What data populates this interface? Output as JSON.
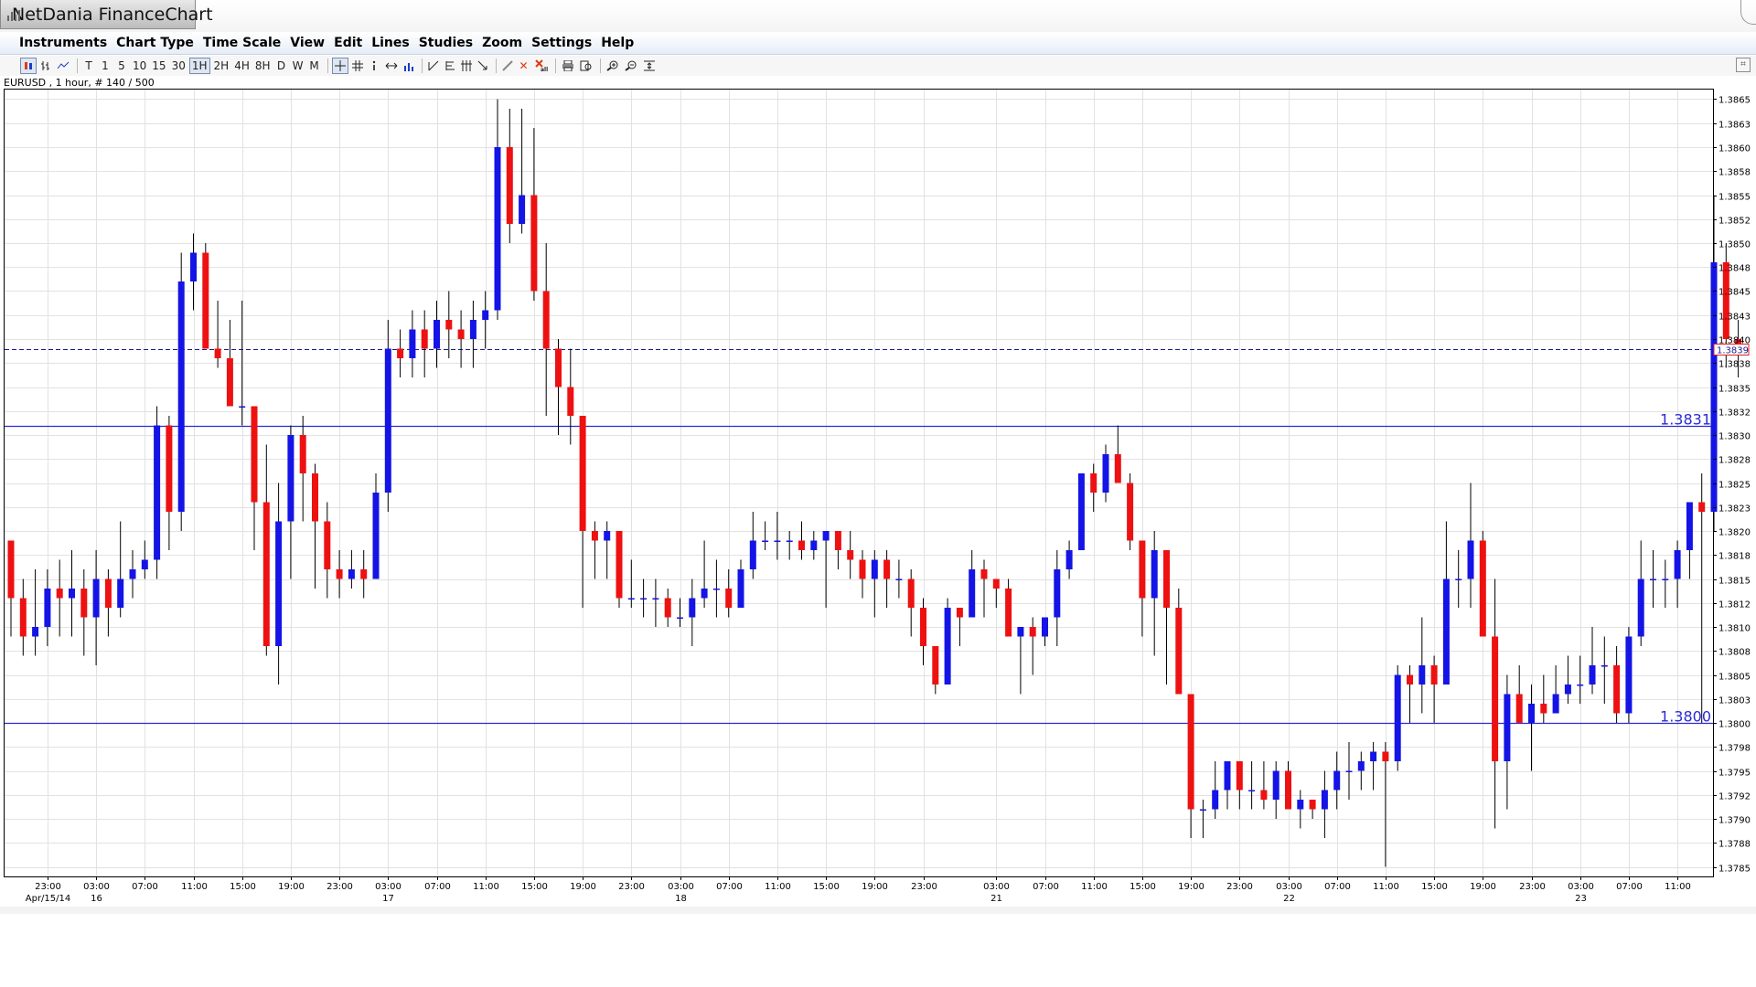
{
  "app": {
    "title": "NetDania FinanceChart",
    "menu": [
      "Instruments",
      "Chart Type",
      "Time Scale",
      "View",
      "Edit",
      "Lines",
      "Studies",
      "Zoom",
      "Settings",
      "Help"
    ],
    "toolbar": {
      "chart_type_icons": [
        "candle-chart-icon",
        "bar-chart-icon",
        "line-chart-icon"
      ],
      "timescales": [
        "T",
        "1",
        "5",
        "10",
        "15",
        "30",
        "1H",
        "2H",
        "4H",
        "8H",
        "D",
        "W",
        "M"
      ],
      "active_timescale": "1H",
      "tool_icons": [
        "crosshair-icon",
        "grid-icon",
        "info-icon",
        "pan-arrows-icon",
        "volume-icon"
      ],
      "line_tool_icons": [
        "trendline-icon",
        "fibonacci-icon",
        "pitchfork-icon",
        "arrow-line-icon"
      ],
      "edit_icons": [
        "pencil-icon",
        "delete-icon",
        "delete-all-icon"
      ],
      "view_icons": [
        "print-icon",
        "print-preview-icon",
        "zoom-in-icon",
        "zoom-out-icon",
        "zoom-fit-icon"
      ]
    },
    "instrument_label": "EURUSD , 1 hour, # 140 / 500"
  },
  "colors": {
    "up_candle": "#1414e6",
    "down_candle": "#ee1111",
    "wick": "#000000",
    "grid": "#e2e2e2",
    "hline": "#2b2bd6",
    "current_price_line": "#1a1a8c",
    "current_price_box": "#e02020"
  },
  "chart_data": {
    "type": "candlestick",
    "symbol": "EURUSD",
    "interval": "1 hour",
    "ylim": [
      1.3784,
      1.3866
    ],
    "yticks": [
      "1.3785",
      "1.3788",
      "1.3790",
      "1.3792",
      "1.3795",
      "1.3798",
      "1.3800",
      "1.3803",
      "1.3805",
      "1.3808",
      "1.3810",
      "1.3812",
      "1.3815",
      "1.3818",
      "1.3820",
      "1.3823",
      "1.3825",
      "1.3828",
      "1.3830",
      "1.3832",
      "1.3835",
      "1.3838",
      "1.3840",
      "1.3843",
      "1.3845",
      "1.3848",
      "1.3850",
      "1.3852",
      "1.3855",
      "1.3858",
      "1.3860",
      "1.3863",
      "1.3865"
    ],
    "ytick_values": [
      1.3785,
      1.37875,
      1.379,
      1.37925,
      1.3795,
      1.37975,
      1.38,
      1.38025,
      1.3805,
      1.38075,
      1.381,
      1.38125,
      1.3815,
      1.38175,
      1.382,
      1.38225,
      1.3825,
      1.38275,
      1.383,
      1.38325,
      1.3835,
      1.38375,
      1.384,
      1.38425,
      1.3845,
      1.38475,
      1.385,
      1.38525,
      1.3855,
      1.38575,
      1.386,
      1.38625,
      1.3865
    ],
    "xticks": [
      {
        "i": 3,
        "label": "23:00",
        "sub": "Apr/15/14"
      },
      {
        "i": 7,
        "label": "03:00",
        "sub": "16"
      },
      {
        "i": 11,
        "label": "07:00"
      },
      {
        "i": 15,
        "label": "11:00"
      },
      {
        "i": 19,
        "label": "15:00"
      },
      {
        "i": 23,
        "label": "19:00"
      },
      {
        "i": 27,
        "label": "23:00"
      },
      {
        "i": 31,
        "label": "03:00",
        "sub": "17"
      },
      {
        "i": 35,
        "label": "07:00"
      },
      {
        "i": 39,
        "label": "11:00"
      },
      {
        "i": 43,
        "label": "15:00"
      },
      {
        "i": 47,
        "label": "19:00"
      },
      {
        "i": 51,
        "label": "23:00"
      },
      {
        "i": 55,
        "label": "03:00",
        "sub": "18"
      },
      {
        "i": 59,
        "label": "07:00"
      },
      {
        "i": 63,
        "label": "11:00"
      },
      {
        "i": 67,
        "label": "15:00"
      },
      {
        "i": 71,
        "label": "19:00"
      },
      {
        "i": 75,
        "label": "23:00"
      },
      {
        "i": 81,
        "label": "03:00",
        "sub": "21"
      },
      {
        "i": 85,
        "label": "07:00"
      },
      {
        "i": 89,
        "label": "11:00"
      },
      {
        "i": 93,
        "label": "15:00"
      },
      {
        "i": 97,
        "label": "19:00"
      },
      {
        "i": 101,
        "label": "23:00"
      },
      {
        "i": 105,
        "label": "03:00",
        "sub": "22"
      },
      {
        "i": 109,
        "label": "07:00"
      },
      {
        "i": 113,
        "label": "11:00"
      },
      {
        "i": 117,
        "label": "15:00"
      },
      {
        "i": 121,
        "label": "19:00"
      },
      {
        "i": 125,
        "label": "23:00"
      },
      {
        "i": 129,
        "label": "03:00",
        "sub": "23"
      },
      {
        "i": 133,
        "label": "07:00"
      },
      {
        "i": 137,
        "label": "11:00"
      }
    ],
    "candles": [
      [
        1.3819,
        1.3813,
        1.3819,
        1.3809
      ],
      [
        1.3813,
        1.3809,
        1.3815,
        1.3807
      ],
      [
        1.3809,
        1.381,
        1.3816,
        1.3807
      ],
      [
        1.381,
        1.3814,
        1.3816,
        1.3808
      ],
      [
        1.3814,
        1.3813,
        1.3817,
        1.3809
      ],
      [
        1.3813,
        1.3814,
        1.3818,
        1.3809
      ],
      [
        1.3814,
        1.3811,
        1.3816,
        1.3807
      ],
      [
        1.3811,
        1.3815,
        1.3818,
        1.3806
      ],
      [
        1.3815,
        1.3812,
        1.3816,
        1.3809
      ],
      [
        1.3812,
        1.3815,
        1.3821,
        1.3811
      ],
      [
        1.3815,
        1.3816,
        1.3818,
        1.3813
      ],
      [
        1.3816,
        1.3817,
        1.3819,
        1.3815
      ],
      [
        1.3817,
        1.3831,
        1.3833,
        1.3815
      ],
      [
        1.3831,
        1.3822,
        1.3832,
        1.3818
      ],
      [
        1.3822,
        1.3846,
        1.3849,
        1.382
      ],
      [
        1.3846,
        1.3849,
        1.3851,
        1.3843
      ],
      [
        1.3849,
        1.3839,
        1.385,
        1.3839
      ],
      [
        1.3839,
        1.3838,
        1.3844,
        1.3837
      ],
      [
        1.3838,
        1.3833,
        1.3842,
        1.3833
      ],
      [
        1.3833,
        1.3833,
        1.3844,
        1.3831
      ],
      [
        1.3833,
        1.3823,
        1.3833,
        1.3818
      ],
      [
        1.3823,
        1.3808,
        1.3829,
        1.3807
      ],
      [
        1.3808,
        1.3821,
        1.3825,
        1.3804
      ],
      [
        1.3821,
        1.383,
        1.3831,
        1.3815
      ],
      [
        1.383,
        1.3826,
        1.3832,
        1.3821
      ],
      [
        1.3826,
        1.3821,
        1.3827,
        1.3814
      ],
      [
        1.3821,
        1.3816,
        1.3823,
        1.3813
      ],
      [
        1.3816,
        1.3815,
        1.3818,
        1.3813
      ],
      [
        1.3815,
        1.3816,
        1.3818,
        1.3814
      ],
      [
        1.3816,
        1.3815,
        1.3818,
        1.3813
      ],
      [
        1.3815,
        1.3824,
        1.3826,
        1.3815
      ],
      [
        1.3824,
        1.3839,
        1.3842,
        1.3822
      ],
      [
        1.3839,
        1.3838,
        1.3841,
        1.3836
      ],
      [
        1.3838,
        1.3841,
        1.3843,
        1.3836
      ],
      [
        1.3841,
        1.3839,
        1.3843,
        1.3836
      ],
      [
        1.3839,
        1.3842,
        1.3844,
        1.3837
      ],
      [
        1.3842,
        1.3841,
        1.3845,
        1.3838
      ],
      [
        1.3841,
        1.384,
        1.3843,
        1.3837
      ],
      [
        1.384,
        1.3842,
        1.3844,
        1.3837
      ],
      [
        1.3842,
        1.3843,
        1.3845,
        1.3839
      ],
      [
        1.3843,
        1.386,
        1.3865,
        1.3842
      ],
      [
        1.386,
        1.3852,
        1.3864,
        1.385
      ],
      [
        1.3852,
        1.3855,
        1.3864,
        1.3851
      ],
      [
        1.3855,
        1.3845,
        1.3862,
        1.3844
      ],
      [
        1.3845,
        1.3839,
        1.385,
        1.3832
      ],
      [
        1.3839,
        1.3835,
        1.384,
        1.383
      ],
      [
        1.3835,
        1.3832,
        1.3839,
        1.3829
      ],
      [
        1.3832,
        1.382,
        1.3832,
        1.3812
      ],
      [
        1.382,
        1.3819,
        1.3821,
        1.3815
      ],
      [
        1.3819,
        1.382,
        1.3821,
        1.3815
      ],
      [
        1.382,
        1.3813,
        1.382,
        1.3812
      ],
      [
        1.3813,
        1.3813,
        1.3817,
        1.3812
      ],
      [
        1.3813,
        1.3813,
        1.3815,
        1.3811
      ],
      [
        1.3813,
        1.3813,
        1.3815,
        1.381
      ],
      [
        1.3813,
        1.3811,
        1.3814,
        1.381
      ],
      [
        1.3811,
        1.3811,
        1.3813,
        1.381
      ],
      [
        1.3811,
        1.3813,
        1.3815,
        1.3808
      ],
      [
        1.3813,
        1.3814,
        1.3819,
        1.3812
      ],
      [
        1.3814,
        1.3814,
        1.3817,
        1.3811
      ],
      [
        1.3814,
        1.3812,
        1.3816,
        1.3811
      ],
      [
        1.3812,
        1.3816,
        1.3817,
        1.3812
      ],
      [
        1.3816,
        1.3819,
        1.3822,
        1.3815
      ],
      [
        1.3819,
        1.3819,
        1.3821,
        1.3818
      ],
      [
        1.3819,
        1.3819,
        1.3822,
        1.3817
      ],
      [
        1.3819,
        1.3819,
        1.382,
        1.3817
      ],
      [
        1.3819,
        1.3818,
        1.3821,
        1.3817
      ],
      [
        1.3818,
        1.3819,
        1.382,
        1.3817
      ],
      [
        1.3819,
        1.382,
        1.382,
        1.3812
      ],
      [
        1.382,
        1.3818,
        1.382,
        1.3816
      ],
      [
        1.3818,
        1.3817,
        1.382,
        1.3815
      ],
      [
        1.3817,
        1.3815,
        1.3818,
        1.3813
      ],
      [
        1.3815,
        1.3817,
        1.3818,
        1.3811
      ],
      [
        1.3817,
        1.3815,
        1.3818,
        1.3812
      ],
      [
        1.3815,
        1.3815,
        1.3817,
        1.3813
      ],
      [
        1.3815,
        1.3812,
        1.3816,
        1.3809
      ],
      [
        1.3812,
        1.3808,
        1.3813,
        1.3806
      ],
      [
        1.3808,
        1.3804,
        1.3808,
        1.3803
      ],
      [
        1.3804,
        1.3812,
        1.3813,
        1.3804
      ],
      [
        1.3812,
        1.3811,
        1.3812,
        1.3808
      ],
      [
        1.3811,
        1.3816,
        1.3818,
        1.3813
      ],
      [
        1.3816,
        1.3815,
        1.3817,
        1.3811
      ],
      [
        1.3815,
        1.3814,
        1.3814,
        1.3812
      ],
      [
        1.3814,
        1.3809,
        1.3815,
        1.3809
      ],
      [
        1.3809,
        1.381,
        1.381,
        1.3803
      ],
      [
        1.381,
        1.3809,
        1.3811,
        1.3805
      ],
      [
        1.3809,
        1.3811,
        1.3811,
        1.3808
      ],
      [
        1.3811,
        1.3816,
        1.3818,
        1.3808
      ],
      [
        1.3816,
        1.3818,
        1.3819,
        1.3815
      ],
      [
        1.3818,
        1.3826,
        1.3826,
        1.3818
      ],
      [
        1.3826,
        1.3824,
        1.3827,
        1.3822
      ],
      [
        1.3824,
        1.3828,
        1.3829,
        1.3823
      ],
      [
        1.3828,
        1.3825,
        1.3831,
        1.3825
      ],
      [
        1.3825,
        1.3819,
        1.3826,
        1.3818
      ],
      [
        1.3819,
        1.3813,
        1.3819,
        1.3809
      ],
      [
        1.3813,
        1.3818,
        1.382,
        1.3807
      ],
      [
        1.3818,
        1.3812,
        1.3818,
        1.3804
      ],
      [
        1.3812,
        1.3803,
        1.3814,
        1.3803
      ],
      [
        1.3803,
        1.3791,
        1.3803,
        1.3788
      ],
      [
        1.3791,
        1.3791,
        1.3792,
        1.3788
      ],
      [
        1.3791,
        1.3793,
        1.3796,
        1.379
      ],
      [
        1.3793,
        1.3796,
        1.3796,
        1.3791
      ],
      [
        1.3796,
        1.3793,
        1.3796,
        1.3791
      ],
      [
        1.3793,
        1.3793,
        1.3796,
        1.3791
      ],
      [
        1.3793,
        1.3792,
        1.3796,
        1.3791
      ],
      [
        1.3792,
        1.3795,
        1.3796,
        1.379
      ],
      [
        1.3795,
        1.3791,
        1.3796,
        1.3791
      ],
      [
        1.3791,
        1.3792,
        1.3793,
        1.3789
      ],
      [
        1.3792,
        1.3791,
        1.3792,
        1.379
      ],
      [
        1.3791,
        1.3793,
        1.3795,
        1.3788
      ],
      [
        1.3793,
        1.3795,
        1.3797,
        1.3791
      ],
      [
        1.3795,
        1.3795,
        1.3798,
        1.3792
      ],
      [
        1.3795,
        1.3796,
        1.3797,
        1.3793
      ],
      [
        1.3796,
        1.3797,
        1.3798,
        1.3793
      ],
      [
        1.3797,
        1.3796,
        1.3798,
        1.3785
      ],
      [
        1.3796,
        1.3805,
        1.3806,
        1.3795
      ],
      [
        1.3805,
        1.3804,
        1.3806,
        1.38
      ],
      [
        1.3804,
        1.3806,
        1.3811,
        1.3801
      ],
      [
        1.3806,
        1.3804,
        1.3807,
        1.38
      ],
      [
        1.3804,
        1.3815,
        1.3821,
        1.3805
      ],
      [
        1.3815,
        1.3815,
        1.3818,
        1.3812
      ],
      [
        1.3815,
        1.3819,
        1.3825,
        1.3812
      ],
      [
        1.3819,
        1.3809,
        1.382,
        1.3809
      ],
      [
        1.3809,
        1.3796,
        1.3815,
        1.3789
      ],
      [
        1.3796,
        1.3803,
        1.3805,
        1.3791
      ],
      [
        1.3803,
        1.38,
        1.3806,
        1.38
      ],
      [
        1.38,
        1.3802,
        1.3804,
        1.3795
      ],
      [
        1.3802,
        1.3801,
        1.3805,
        1.38
      ],
      [
        1.3801,
        1.3803,
        1.3806,
        1.3801
      ],
      [
        1.3803,
        1.3804,
        1.3807,
        1.3802
      ],
      [
        1.3804,
        1.3804,
        1.3807,
        1.3802
      ],
      [
        1.3804,
        1.3806,
        1.381,
        1.3803
      ],
      [
        1.3806,
        1.3806,
        1.3809,
        1.3802
      ],
      [
        1.3806,
        1.3801,
        1.3808,
        1.38
      ],
      [
        1.3801,
        1.3809,
        1.381,
        1.38
      ],
      [
        1.3809,
        1.3815,
        1.3819,
        1.3808
      ],
      [
        1.3815,
        1.3815,
        1.3818,
        1.3812
      ],
      [
        1.3815,
        1.3815,
        1.3817,
        1.3812
      ],
      [
        1.3815,
        1.3818,
        1.3819,
        1.3812
      ],
      [
        1.3818,
        1.3823,
        1.3823,
        1.3815
      ],
      [
        1.3823,
        1.3822,
        1.3826,
        1.38
      ],
      [
        1.3822,
        1.3848,
        1.3855,
        1.382
      ],
      [
        1.3848,
        1.384,
        1.385,
        1.3837
      ],
      [
        1.384,
        1.3839,
        1.3842,
        1.3836
      ]
    ],
    "horizontal_lines": [
      {
        "value": 1.3831,
        "label": "1.3831"
      },
      {
        "value": 1.38,
        "label": "1.3800"
      }
    ],
    "current_price": {
      "value": 1.3839,
      "label": "1.3839"
    },
    "grid": true
  }
}
